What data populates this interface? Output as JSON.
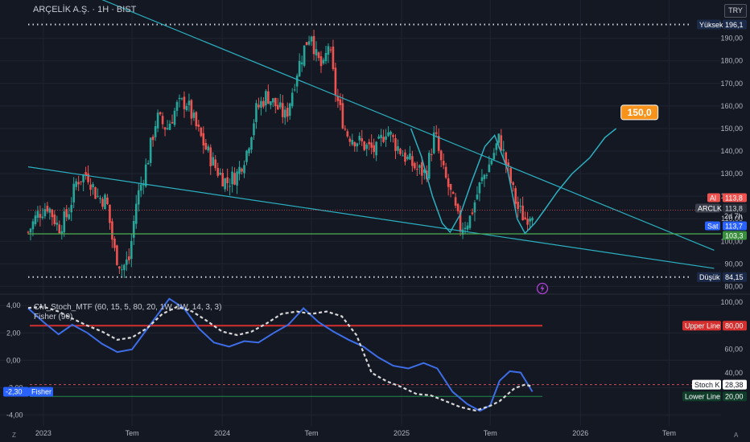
{
  "header": {
    "title": "ARÇELİK A.Ş. · 1H · BIST",
    "currency": "TRY"
  },
  "indicator": {
    "title": "CM_Stoch_MTF (60, 15, 5, 80, 20, 1W, 1W, 14, 3, 3)",
    "subtitle": "Fisher (90)"
  },
  "corner_labels": {
    "left": "Z",
    "right": "A"
  },
  "colors": {
    "background": "#141823",
    "up": "#26a69a",
    "down": "#ef5350",
    "trendline": "#2bb0c0",
    "support": "#4caf50",
    "fisher": "#3d6ee8",
    "stoch_d": "#d8d8d8",
    "upper_line": "#d32f2f",
    "lower_line": "#1e8a4c"
  },
  "chart_data": [
    {
      "type": "candlestick",
      "y_ticks": [
        80,
        90,
        100,
        110,
        120,
        130,
        140,
        150,
        160,
        170,
        180,
        190
      ],
      "ylim": [
        78,
        202
      ],
      "x_ticks": [
        {
          "label": "2023",
          "date": "2023-01-01"
        },
        {
          "label": "Tem",
          "date": "2023-07-01"
        },
        {
          "label": "2024",
          "date": "2024-01-01"
        },
        {
          "label": "Tem",
          "date": "2024-07-01"
        },
        {
          "label": "2025",
          "date": "2025-01-01"
        },
        {
          "label": "Tem",
          "date": "2025-07-01"
        },
        {
          "label": "2026",
          "date": "2026-01-01"
        },
        {
          "label": "Tem",
          "date": "2026-07-01"
        }
      ],
      "xlim": [
        "2022-12-01",
        "2026-10-15"
      ],
      "close_path": [
        [
          "2022-12-01",
          104
        ],
        [
          "2022-12-20",
          112
        ],
        [
          "2023-01-10",
          116
        ],
        [
          "2023-02-01",
          106
        ],
        [
          "2023-02-20",
          112
        ],
        [
          "2023-03-10",
          127
        ],
        [
          "2023-04-01",
          130
        ],
        [
          "2023-04-20",
          120
        ],
        [
          "2023-05-10",
          118
        ],
        [
          "2023-05-25",
          96
        ],
        [
          "2023-06-10",
          88
        ],
        [
          "2023-06-25",
          92
        ],
        [
          "2023-07-10",
          118
        ],
        [
          "2023-08-01",
          135
        ],
        [
          "2023-08-20",
          155
        ],
        [
          "2023-09-10",
          150
        ],
        [
          "2023-10-01",
          160
        ],
        [
          "2023-10-20",
          162
        ],
        [
          "2023-11-10",
          150
        ],
        [
          "2023-12-01",
          140
        ],
        [
          "2023-12-20",
          132
        ],
        [
          "2024-01-10",
          126
        ],
        [
          "2024-02-01",
          130
        ],
        [
          "2024-02-20",
          140
        ],
        [
          "2024-03-10",
          158
        ],
        [
          "2024-04-01",
          165
        ],
        [
          "2024-04-20",
          160
        ],
        [
          "2024-05-10",
          155
        ],
        [
          "2024-06-01",
          175
        ],
        [
          "2024-06-20",
          188
        ],
        [
          "2024-07-01",
          193
        ],
        [
          "2024-07-10",
          182
        ],
        [
          "2024-07-25",
          176
        ],
        [
          "2024-08-05",
          188
        ],
        [
          "2024-08-20",
          165
        ],
        [
          "2024-09-10",
          148
        ],
        [
          "2024-10-01",
          145
        ],
        [
          "2024-10-20",
          142
        ],
        [
          "2024-11-10",
          140
        ],
        [
          "2024-12-01",
          150
        ],
        [
          "2024-12-20",
          143
        ],
        [
          "2025-01-10",
          137
        ],
        [
          "2025-02-01",
          132
        ],
        [
          "2025-02-20",
          130
        ],
        [
          "2025-03-10",
          148
        ],
        [
          "2025-03-25",
          132
        ],
        [
          "2025-04-10",
          122
        ],
        [
          "2025-05-01",
          106
        ],
        [
          "2025-05-20",
          110
        ],
        [
          "2025-06-10",
          125
        ],
        [
          "2025-07-01",
          135
        ],
        [
          "2025-07-20",
          146
        ],
        [
          "2025-08-05",
          132
        ],
        [
          "2025-08-25",
          115
        ],
        [
          "2025-09-10",
          110
        ],
        [
          "2025-09-25",
          113.8
        ]
      ],
      "markers": {
        "high": {
          "label": "Yüksek",
          "value": "196,1",
          "date": "2024-07-01"
        },
        "low": {
          "label": "Düşük",
          "value": "84,15",
          "date": "2023-06-15"
        }
      },
      "price_labels": {
        "bid": {
          "label": "Al",
          "value": "113,8",
          "y": 113.8
        },
        "last": {
          "label": "ARCLK",
          "value": "113,8",
          "countdown": "2d 7h",
          "y": 113.8
        },
        "ask": {
          "label": "Sat",
          "value": "113,7",
          "y": 113.7
        },
        "support": {
          "value": "103,3",
          "y": 103.3
        }
      },
      "trendlines": [
        {
          "from": [
            "2023-04-10",
            209
          ],
          "to": [
            "2026-10-01",
            96
          ]
        },
        {
          "from": [
            "2022-12-01",
            133
          ],
          "to": [
            "2026-10-01",
            88
          ]
        }
      ],
      "support_line": 103.3,
      "projection": {
        "label": "150,0",
        "path": [
          [
            "2025-01-20",
            150
          ],
          [
            "2025-02-10",
            138
          ],
          [
            "2025-03-05",
            120
          ],
          [
            "2025-03-25",
            108
          ],
          [
            "2025-04-10",
            104
          ],
          [
            "2025-05-01",
            112
          ],
          [
            "2025-05-25",
            127
          ],
          [
            "2025-06-20",
            142
          ],
          [
            "2025-07-10",
            147
          ],
          [
            "2025-08-05",
            132
          ],
          [
            "2025-08-25",
            110
          ],
          [
            "2025-09-10",
            103.5
          ],
          [
            "2025-09-30",
            108
          ],
          [
            "2025-10-20",
            114
          ],
          [
            "2025-11-15",
            122
          ],
          [
            "2025-12-15",
            130
          ],
          [
            "2026-01-20",
            137
          ],
          [
            "2026-02-20",
            146
          ],
          [
            "2026-03-15",
            150
          ]
        ]
      }
    },
    {
      "type": "line",
      "left_ticks": [
        "4,00",
        "2,00",
        "0,00",
        "-2,00",
        "-4,00"
      ],
      "left_ylim": [
        -4.8,
        4.6
      ],
      "right_ticks": [
        {
          "label": "100,00",
          "v": 100
        },
        {
          "label": "60,00",
          "v": 60
        },
        {
          "label": "40,00",
          "v": 40
        }
      ],
      "right_ylim": [
        -5,
        104
      ],
      "series": [
        {
          "name": "Fisher",
          "value": "-2,30",
          "points": [
            [
              "2022-12-01",
              3.8
            ],
            [
              "2023-01-01",
              2.8
            ],
            [
              "2023-02-01",
              1.9
            ],
            [
              "2023-03-01",
              2.6
            ],
            [
              "2023-04-01",
              2.0
            ],
            [
              "2023-05-01",
              1.2
            ],
            [
              "2023-06-01",
              0.6
            ],
            [
              "2023-07-01",
              0.8
            ],
            [
              "2023-08-01",
              2.3
            ],
            [
              "2023-09-15",
              4.5
            ],
            [
              "2023-10-15",
              3.8
            ],
            [
              "2023-11-15",
              2.3
            ],
            [
              "2023-12-15",
              1.3
            ],
            [
              "2024-01-15",
              1.0
            ],
            [
              "2024-02-15",
              1.4
            ],
            [
              "2024-03-15",
              1.3
            ],
            [
              "2024-04-15",
              2.0
            ],
            [
              "2024-05-15",
              2.6
            ],
            [
              "2024-06-15",
              3.8
            ],
            [
              "2024-07-15",
              2.8
            ],
            [
              "2024-08-15",
              2.1
            ],
            [
              "2024-09-15",
              1.5
            ],
            [
              "2024-10-15",
              1.0
            ],
            [
              "2024-11-15",
              0.2
            ],
            [
              "2024-12-15",
              -0.4
            ],
            [
              "2025-01-15",
              -0.6
            ],
            [
              "2025-02-15",
              -0.2
            ],
            [
              "2025-03-15",
              -0.6
            ],
            [
              "2025-04-15",
              -2.3
            ],
            [
              "2025-05-15",
              -3.2
            ],
            [
              "2025-06-10",
              -3.7
            ],
            [
              "2025-07-01",
              -3.3
            ],
            [
              "2025-07-20",
              -1.5
            ],
            [
              "2025-08-10",
              -0.8
            ],
            [
              "2025-09-01",
              -0.9
            ],
            [
              "2025-09-25",
              -2.3
            ]
          ]
        },
        {
          "name": "Stoch K",
          "value": "28,38",
          "points": [
            [
              "2022-12-01",
              95
            ],
            [
              "2023-01-01",
              96
            ],
            [
              "2023-02-01",
              92
            ],
            [
              "2023-03-01",
              86
            ],
            [
              "2023-04-01",
              80
            ],
            [
              "2023-05-01",
              75
            ],
            [
              "2023-06-01",
              68
            ],
            [
              "2023-07-01",
              70
            ],
            [
              "2023-08-01",
              78
            ],
            [
              "2023-09-01",
              90
            ],
            [
              "2023-10-01",
              96
            ],
            [
              "2023-11-01",
              92
            ],
            [
              "2023-12-01",
              84
            ],
            [
              "2024-01-01",
              75
            ],
            [
              "2024-02-01",
              72
            ],
            [
              "2024-03-01",
              75
            ],
            [
              "2024-04-01",
              82
            ],
            [
              "2024-05-01",
              90
            ],
            [
              "2024-06-01",
              92
            ],
            [
              "2024-07-01",
              90
            ],
            [
              "2024-08-01",
              92
            ],
            [
              "2024-09-01",
              88
            ],
            [
              "2024-10-01",
              72
            ],
            [
              "2024-11-01",
              40
            ],
            [
              "2024-12-01",
              33
            ],
            [
              "2025-01-01",
              28
            ],
            [
              "2025-02-01",
              22
            ],
            [
              "2025-03-01",
              21
            ],
            [
              "2025-04-01",
              16
            ],
            [
              "2025-05-01",
              11
            ],
            [
              "2025-06-01",
              8
            ],
            [
              "2025-07-01",
              12
            ],
            [
              "2025-07-20",
              16
            ],
            [
              "2025-08-20",
              27
            ],
            [
              "2025-09-10",
              30
            ],
            [
              "2025-09-25",
              28.4
            ]
          ]
        }
      ],
      "levels": [
        {
          "name": "Upper Line",
          "value": "80,00",
          "v": 80
        },
        {
          "name": "Lower Line",
          "value": "20,00",
          "v": 20
        }
      ],
      "dashed_level": 30
    }
  ]
}
